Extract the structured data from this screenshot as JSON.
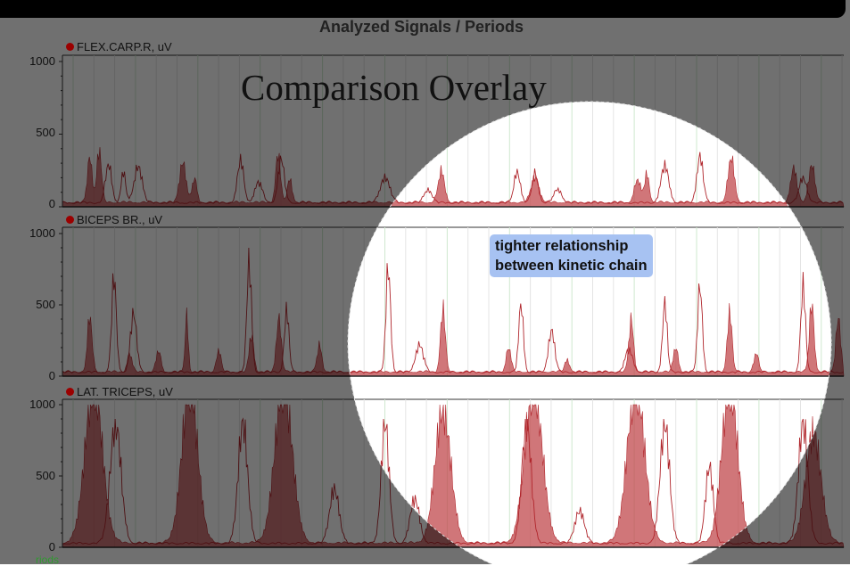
{
  "header": {
    "title": "Analyzed Signals / Periods"
  },
  "overlay": {
    "title": "Comparison Overlay",
    "note_line1": "tighter relationship",
    "note_line2": "between kinetic chain",
    "periods_fragment": "riods"
  },
  "colors": {
    "fill": "#c0484c",
    "outline": "#b0262c",
    "marker": "#9b0000",
    "note_bg": "#a7c2f2",
    "grid": "#cfe8cf"
  },
  "chart_data": [
    {
      "type": "area",
      "channel": "FLEX.CARP.R, uV",
      "ylim": [
        0,
        1000
      ],
      "yticks": [
        "1000",
        "500",
        "0"
      ],
      "filled_peaks": [
        [
          35,
          370,
          3
        ],
        [
          47,
          420,
          3
        ],
        [
          154,
          330,
          4
        ],
        [
          169,
          190,
          3
        ],
        [
          276,
          390,
          3
        ],
        [
          291,
          190,
          3
        ],
        [
          485,
          250,
          4
        ],
        [
          605,
          200,
          5
        ],
        [
          736,
          180,
          4
        ],
        [
          748,
          230,
          3
        ],
        [
          856,
          360,
          4
        ],
        [
          936,
          270,
          4
        ],
        [
          959,
          300,
          4
        ]
      ],
      "outline_peaks": [
        [
          59,
          340,
          4
        ],
        [
          78,
          270,
          3
        ],
        [
          97,
          330,
          5
        ],
        [
          228,
          380,
          4
        ],
        [
          251,
          180,
          5
        ],
        [
          280,
          390,
          4
        ],
        [
          413,
          230,
          6
        ],
        [
          468,
          120,
          5
        ],
        [
          582,
          280,
          4
        ],
        [
          605,
          260,
          4
        ],
        [
          634,
          120,
          5
        ],
        [
          771,
          330,
          5
        ],
        [
          816,
          420,
          4
        ],
        [
          948,
          220,
          5
        ]
      ]
    },
    {
      "type": "area",
      "channel": "BICEPS BR., uV",
      "ylim": [
        0,
        1000
      ],
      "yticks": [
        "1000",
        "500",
        "0"
      ],
      "filled_peaks": [
        [
          35,
          450,
          3
        ],
        [
          86,
          150,
          3
        ],
        [
          123,
          170,
          3
        ],
        [
          159,
          460,
          2
        ],
        [
          200,
          170,
          3
        ],
        [
          242,
          300,
          3
        ],
        [
          277,
          450,
          3
        ],
        [
          329,
          220,
          3
        ],
        [
          487,
          520,
          3
        ],
        [
          571,
          200,
          3
        ],
        [
          646,
          100,
          3
        ],
        [
          728,
          430,
          3
        ],
        [
          785,
          200,
          3
        ],
        [
          854,
          490,
          3
        ],
        [
          888,
          150,
          3
        ],
        [
          959,
          560,
          3
        ],
        [
          993,
          450,
          3
        ]
      ],
      "outline_peaks": [
        [
          66,
          870,
          3
        ],
        [
          91,
          530,
          4
        ],
        [
          239,
          1000,
          3
        ],
        [
          287,
          560,
          3
        ],
        [
          417,
          960,
          3
        ],
        [
          457,
          250,
          5
        ],
        [
          587,
          620,
          3
        ],
        [
          626,
          380,
          4
        ],
        [
          725,
          200,
          5
        ],
        [
          771,
          630,
          3
        ],
        [
          816,
          790,
          3
        ],
        [
          948,
          780,
          3
        ]
      ]
    },
    {
      "type": "area",
      "channel": "LAT. TRICEPS, uV",
      "ylim": [
        0,
        1000
      ],
      "yticks": [
        "1000",
        "500",
        "0"
      ],
      "filled_peaks": [
        [
          40,
          1300,
          11
        ],
        [
          163,
          1300,
          10
        ],
        [
          283,
          1300,
          11
        ],
        [
          487,
          1100,
          10
        ],
        [
          603,
          1300,
          11
        ],
        [
          734,
          1300,
          11
        ],
        [
          854,
          1300,
          10
        ],
        [
          961,
          900,
          10
        ]
      ],
      "outline_peaks": [
        [
          68,
          1100,
          7
        ],
        [
          231,
          1100,
          6
        ],
        [
          348,
          500,
          6
        ],
        [
          413,
          1100,
          5
        ],
        [
          451,
          400,
          6
        ],
        [
          594,
          1100,
          6
        ],
        [
          662,
          300,
          6
        ],
        [
          771,
          1100,
          6
        ],
        [
          828,
          700,
          5
        ],
        [
          948,
          1100,
          6
        ]
      ]
    }
  ]
}
